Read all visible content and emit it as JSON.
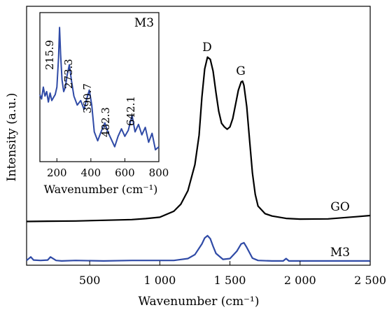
{
  "chart_data": [
    {
      "type": "line",
      "xlabel": "Wavenumber (cm⁻¹)",
      "ylabel": "Intensity (a.u.)",
      "xlim": [
        50,
        2500
      ],
      "xticks": [
        500,
        1000,
        1500,
        2000,
        2500
      ],
      "xtick_labels": [
        "500",
        "1 000",
        "1 500",
        "2 000",
        "2 500"
      ],
      "ylim": [
        0,
        1
      ],
      "grid": false,
      "series": [
        {
          "name": "GO",
          "color": "#000000",
          "x": [
            50,
            200,
            400,
            600,
            800,
            900,
            1000,
            1100,
            1150,
            1200,
            1250,
            1280,
            1300,
            1320,
            1340,
            1360,
            1380,
            1400,
            1420,
            1440,
            1460,
            1480,
            1500,
            1520,
            1540,
            1560,
            1580,
            1590,
            1600,
            1620,
            1640,
            1660,
            1680,
            1700,
            1750,
            1800,
            1900,
            2000,
            2200,
            2400,
            2500
          ],
          "y": [
            0.185,
            0.186,
            0.187,
            0.19,
            0.193,
            0.197,
            0.203,
            0.228,
            0.258,
            0.315,
            0.425,
            0.55,
            0.71,
            0.83,
            0.88,
            0.87,
            0.82,
            0.73,
            0.65,
            0.6,
            0.585,
            0.575,
            0.585,
            0.62,
            0.68,
            0.74,
            0.775,
            0.778,
            0.76,
            0.67,
            0.53,
            0.39,
            0.3,
            0.25,
            0.218,
            0.208,
            0.198,
            0.195,
            0.196,
            0.205,
            0.21
          ]
        },
        {
          "name": "M3",
          "color": "#2f4aa6",
          "x": [
            50,
            80,
            100,
            150,
            200,
            220,
            260,
            300,
            400,
            600,
            800,
            1000,
            1100,
            1200,
            1250,
            1300,
            1320,
            1340,
            1360,
            1380,
            1400,
            1450,
            1500,
            1550,
            1580,
            1600,
            1620,
            1660,
            1700,
            1800,
            1880,
            1900,
            1920,
            2000,
            2200,
            2500
          ],
          "y": [
            0.02,
            0.035,
            0.022,
            0.02,
            0.022,
            0.035,
            0.02,
            0.018,
            0.02,
            0.018,
            0.02,
            0.02,
            0.02,
            0.028,
            0.045,
            0.09,
            0.115,
            0.125,
            0.112,
            0.08,
            0.05,
            0.025,
            0.028,
            0.06,
            0.09,
            0.095,
            0.075,
            0.03,
            0.02,
            0.018,
            0.018,
            0.028,
            0.018,
            0.018,
            0.018,
            0.018
          ]
        }
      ],
      "annotations": [
        "D",
        "G",
        "GO",
        "M3"
      ]
    },
    {
      "type": "line",
      "title": "M3",
      "xlabel": "Wavenumber (cm⁻¹)",
      "xlim": [
        100,
        800
      ],
      "xticks": [
        200,
        400,
        600,
        800
      ],
      "xtick_labels": [
        "200",
        "400",
        "600",
        "800"
      ],
      "ylim": [
        0,
        1
      ],
      "series": [
        {
          "name": "M3",
          "color": "#2f4aa6",
          "x": [
            100,
            110,
            120,
            130,
            140,
            150,
            160,
            170,
            180,
            190,
            200,
            210,
            215.9,
            222,
            230,
            240,
            250,
            260,
            273.3,
            285,
            300,
            320,
            340,
            360,
            375,
            390.7,
            405,
            420,
            440,
            460,
            482.3,
            500,
            520,
            540,
            560,
            580,
            600,
            620,
            642.1,
            660,
            680,
            700,
            720,
            740,
            760,
            780,
            800
          ],
          "y": [
            0.45,
            0.42,
            0.5,
            0.44,
            0.47,
            0.4,
            0.46,
            0.41,
            0.43,
            0.45,
            0.5,
            0.7,
            0.9,
            0.72,
            0.55,
            0.47,
            0.5,
            0.58,
            0.65,
            0.55,
            0.44,
            0.38,
            0.41,
            0.35,
            0.42,
            0.48,
            0.38,
            0.2,
            0.14,
            0.2,
            0.26,
            0.2,
            0.15,
            0.1,
            0.17,
            0.22,
            0.17,
            0.21,
            0.31,
            0.2,
            0.25,
            0.18,
            0.23,
            0.13,
            0.19,
            0.08,
            0.1
          ]
        }
      ],
      "annotations": [
        "215.9",
        "273.3",
        "390.7",
        "482.3",
        "642.1"
      ]
    }
  ]
}
